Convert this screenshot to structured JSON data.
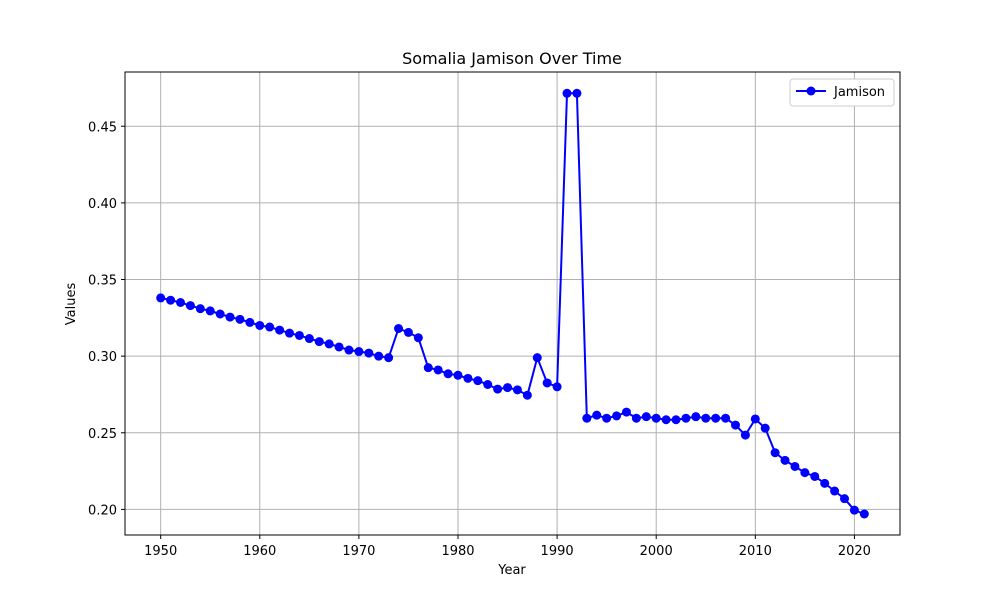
{
  "chart_data": {
    "type": "line",
    "title": "Somalia Jamison Over Time",
    "xlabel": "Year",
    "ylabel": "Values",
    "xlim": [
      1946.4,
      2024.6
    ],
    "ylim": [
      0.1833,
      0.4854
    ],
    "xticks": [
      1950,
      1960,
      1970,
      1980,
      1990,
      2000,
      2010,
      2020
    ],
    "yticks": [
      0.2,
      0.25,
      0.3,
      0.35,
      0.4,
      0.45
    ],
    "ytick_labels": [
      "0.20",
      "0.25",
      "0.30",
      "0.35",
      "0.40",
      "0.45"
    ],
    "grid": true,
    "legend_position": "top-right",
    "series": [
      {
        "name": "Jamison",
        "color": "#0000ff",
        "marker": "circle",
        "x": [
          1950,
          1951,
          1952,
          1953,
          1954,
          1955,
          1956,
          1957,
          1958,
          1959,
          1960,
          1961,
          1962,
          1963,
          1964,
          1965,
          1966,
          1967,
          1968,
          1969,
          1970,
          1971,
          1972,
          1973,
          1974,
          1975,
          1976,
          1977,
          1978,
          1979,
          1980,
          1981,
          1982,
          1983,
          1984,
          1985,
          1986,
          1987,
          1988,
          1989,
          1990,
          1991,
          1992,
          1993,
          1994,
          1995,
          1996,
          1997,
          1998,
          1999,
          2000,
          2001,
          2002,
          2003,
          2004,
          2005,
          2006,
          2007,
          2008,
          2009,
          2010,
          2011,
          2012,
          2013,
          2014,
          2015,
          2016,
          2017,
          2018,
          2019,
          2020,
          2021
        ],
        "values": [
          0.338,
          0.3365,
          0.335,
          0.333,
          0.331,
          0.3295,
          0.3275,
          0.3255,
          0.324,
          0.322,
          0.32,
          0.319,
          0.317,
          0.315,
          0.3135,
          0.3115,
          0.3095,
          0.308,
          0.306,
          0.304,
          0.303,
          0.302,
          0.3,
          0.299,
          0.318,
          0.3155,
          0.312,
          0.2925,
          0.291,
          0.2885,
          0.2875,
          0.2855,
          0.284,
          0.2815,
          0.2785,
          0.2795,
          0.278,
          0.2745,
          0.299,
          0.2825,
          0.28,
          0.4715,
          0.4715,
          0.2595,
          0.2615,
          0.2595,
          0.261,
          0.2635,
          0.2595,
          0.2605,
          0.2595,
          0.2585,
          0.2585,
          0.2595,
          0.2605,
          0.2595,
          0.2595,
          0.2595,
          0.255,
          0.2485,
          0.259,
          0.253,
          0.237,
          0.232,
          0.228,
          0.224,
          0.2215,
          0.217,
          0.212,
          0.207,
          0.1995,
          0.197
        ]
      }
    ]
  }
}
